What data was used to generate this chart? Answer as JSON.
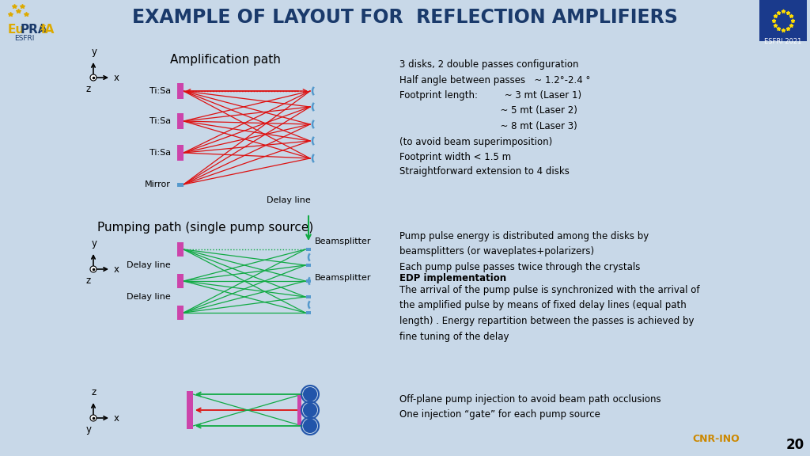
{
  "title": "EXAMPLE OF LAYOUT FOR  REFLECTION AMPLIFIERS",
  "bg_color": "#c8d8e8",
  "title_color": "#1a3a6b",
  "title_fontsize": 17,
  "amp_title": "Amplification path",
  "pump_title": "Pumping path (single pump source)",
  "right_text1": "3 disks, 2 double passes configuration\nHalf angle between passes   ~ 1.2°-2.4 °\nFootprint length:         ~ 3 mt (Laser 1)\n                                  ~ 5 mt (Laser 2)\n                                  ~ 8 mt (Laser 3)\n(to avoid beam superimposition)\nFootprint width < 1.5 m",
  "right_text2": "Straightforward extension to 4 disks",
  "right_text3": "Pump pulse energy is distributed among the disks by\nbeamsplitters (or waveplates+polarizers)\nEach pump pulse passes twice through the crystals",
  "right_text4_bold": "EDP implementation",
  "right_text4": "The arrival of the pump pulse is synchronized with the arrival of\nthe amplified pulse by means of fixed delay lines (equal path\nlength) . Energy repartition between the passes is achieved by\nfine tuning of the delay",
  "right_text5": "Off-plane pump injection to avoid beam path occlusions\nOne injection “gate” for each pump source",
  "tiSa_color": "#cc44aa",
  "mirror_color": "#5599cc",
  "red_color": "#dd1111",
  "green_color": "#11aa44",
  "blue_color": "#5599cc"
}
